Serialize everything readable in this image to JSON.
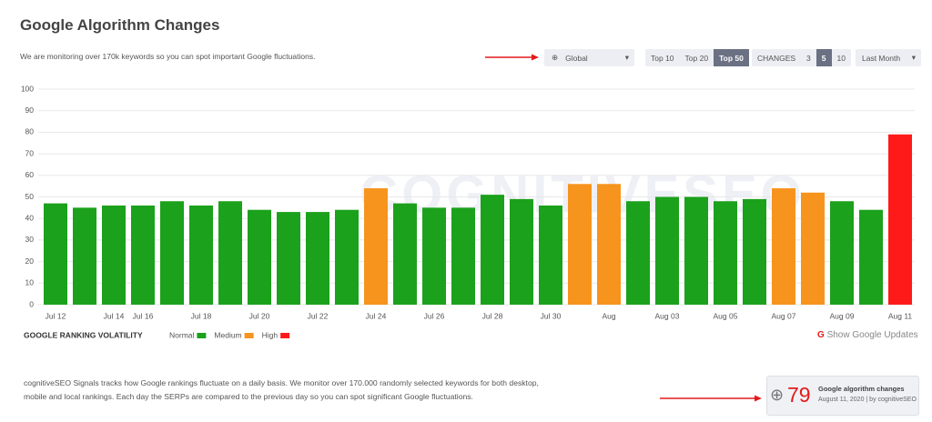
{
  "header": {
    "title": "Google Algorithm Changes",
    "subtitle": "We are monitoring over 170k keywords so you can spot important Google fluctuations."
  },
  "controls": {
    "region": "Global",
    "top": [
      "Top 10",
      "Top 20",
      "Top 50"
    ],
    "top_active": 2,
    "changes_label": "CHANGES",
    "changes": [
      "3",
      "5",
      "10"
    ],
    "changes_active": 1,
    "period": "Last Month"
  },
  "chart_data": {
    "type": "bar",
    "watermark": "COGNITIVESEO",
    "categories": [
      "Jul 12",
      null,
      "Jul 14",
      "Jul 16",
      null,
      "Jul 18",
      null,
      "Jul 20",
      null,
      "Jul 22",
      null,
      "Jul 24",
      null,
      "Jul 26",
      null,
      "Jul 28",
      null,
      "Jul 30",
      null,
      "Aug",
      null,
      "Aug 03",
      null,
      "Aug 05",
      null,
      "Aug 07",
      null,
      "Aug 09",
      null,
      "Aug 11"
    ],
    "values": [
      47,
      45,
      46,
      46,
      48,
      46,
      48,
      44,
      43,
      43,
      44,
      54,
      47,
      45,
      45,
      51,
      49,
      46,
      56,
      56,
      48,
      50,
      50,
      48,
      49,
      54,
      52,
      48,
      44,
      79
    ],
    "colors": [
      "#1ba11b",
      "#1ba11b",
      "#1ba11b",
      "#1ba11b",
      "#1ba11b",
      "#1ba11b",
      "#1ba11b",
      "#1ba11b",
      "#1ba11b",
      "#1ba11b",
      "#1ba11b",
      "#f7941d",
      "#1ba11b",
      "#1ba11b",
      "#1ba11b",
      "#1ba11b",
      "#1ba11b",
      "#1ba11b",
      "#f7941d",
      "#f7941d",
      "#1ba11b",
      "#1ba11b",
      "#1ba11b",
      "#1ba11b",
      "#1ba11b",
      "#f7941d",
      "#f7941d",
      "#1ba11b",
      "#1ba11b",
      "#ff1a1a"
    ],
    "ylim": [
      0,
      100
    ],
    "yticks": [
      0,
      10,
      20,
      30,
      40,
      50,
      60,
      70,
      80,
      90,
      100
    ],
    "grid": true,
    "legend": {
      "title": "GOOGLE RANKING VOLATILITY",
      "items": [
        {
          "name": "Normal",
          "color": "#1ba11b"
        },
        {
          "name": "Medium",
          "color": "#f7941d"
        },
        {
          "name": "High",
          "color": "#ff1a1a"
        }
      ]
    }
  },
  "link": "Show Google Updates",
  "description": "cognitiveSEO Signals tracks how Google rankings fluctuate on a daily basis. We monitor over 170.000 randomly selected keywords for both desktop, mobile and local rankings. Each day the SERPs are compared to the previous day so you can spot significant Google fluctuations.",
  "card": {
    "value": "79",
    "title": "Google algorithm changes",
    "meta": "August 11, 2020 | by cognitiveSEO"
  }
}
